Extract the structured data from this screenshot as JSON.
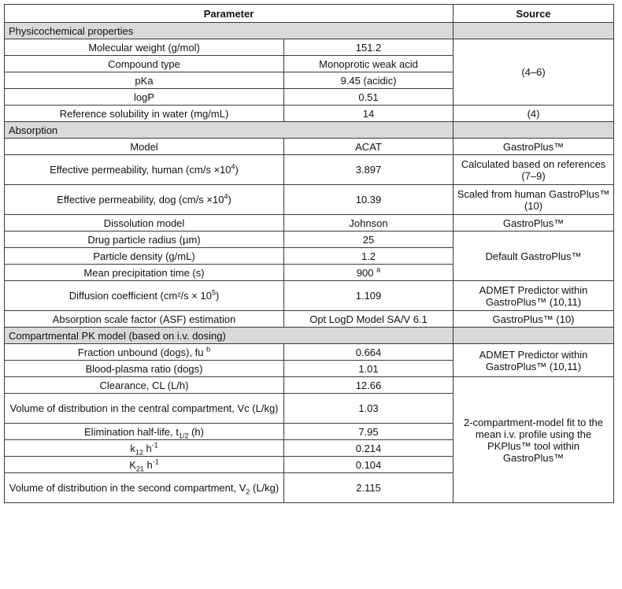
{
  "header": {
    "parameter": "Parameter",
    "source": "Source"
  },
  "sections": {
    "physchem": "Physicochemical properties",
    "absorption": "Absorption",
    "compartmental": "Compartmental PK model (based on i.v. dosing)"
  },
  "rows": {
    "mw": {
      "param": "Molecular weight (g/mol)",
      "value": "151.2"
    },
    "ctype": {
      "param": "Compound type",
      "value": "Monoprotic weak acid"
    },
    "pka": {
      "param": "pKa",
      "value": "9.45 (acidic)"
    },
    "logp": {
      "param": "logP",
      "value": "0.51"
    },
    "physchem_source": "(4–6)",
    "sol": {
      "param": "Reference solubility in water (mg/mL)",
      "value": "14",
      "source": "(4)"
    },
    "model": {
      "param": "Model",
      "value": "ACAT",
      "source": "GastroPlus™"
    },
    "peff_h": {
      "param": "Effective permeability, human (cm/s ×10",
      "param_sup": "4",
      "param_end": ")",
      "value": "3.897",
      "source": "Calculated based on references (7–9)"
    },
    "peff_d": {
      "param": "Effective permeability, dog (cm/s ×10",
      "param_sup": "4",
      "param_end": ")",
      "value": "10.39",
      "source": "Scaled from human GastroPlus™ (10)"
    },
    "diss": {
      "param": "Dissolution model",
      "value": "Johnson",
      "source": "GastroPlus™"
    },
    "radius": {
      "param": "Drug particle radius (µm)",
      "value": "25"
    },
    "density": {
      "param": "Particle density (g/mL)",
      "value": "1.2"
    },
    "mpt": {
      "param": "Mean precipitation time (s)",
      "value": "900",
      "value_sup": "a"
    },
    "default_source": "Default GastroPlus™",
    "diffusion": {
      "param": "Diffusion coefficient (cm²/s × 10",
      "param_sup": "5",
      "param_end": ")",
      "value": "1.109",
      "source": "ADMET Predictor within GastroPlus™ (10,11)"
    },
    "asf": {
      "param": "Absorption scale factor (ASF) estimation",
      "value": "Opt LogD Model SA/V 6.1",
      "source": "GastroPlus™ (10)"
    },
    "fu": {
      "param": "Fraction unbound (dogs), fu",
      "param_sup": "b",
      "value": "0.664"
    },
    "bpr": {
      "param": "Blood-plasma ratio (dogs)",
      "value": "1.01"
    },
    "admet_source": "ADMET Predictor within GastroPlus™ (10,11)",
    "cl": {
      "param": "Clearance, CL (L/h)",
      "value": "12.66"
    },
    "vc": {
      "param": "Volume of distribution in the central compartment, Vc (L/kg)",
      "value": "1.03"
    },
    "thalf": {
      "param": "Elimination half-life, t",
      "param_sub": "1/2",
      "param_end": " (h)",
      "value": "7.95"
    },
    "k12": {
      "param": "k",
      "param_sub": "12",
      "param_end": " h",
      "param_sup": "-1",
      "value": "0.214"
    },
    "k21": {
      "param": "K",
      "param_sub": "21",
      "param_end": " h",
      "param_sup": "-1",
      "value": "0.104"
    },
    "v2": {
      "param": "Volume of distribution in the second compartment, V",
      "param_sub": "2",
      "param_end": " (L/kg)",
      "value": "2.115"
    },
    "pk_source": "2-compartment-model fit to the mean i.v. profile using the PKPlus™ tool within GastroPlus™"
  }
}
